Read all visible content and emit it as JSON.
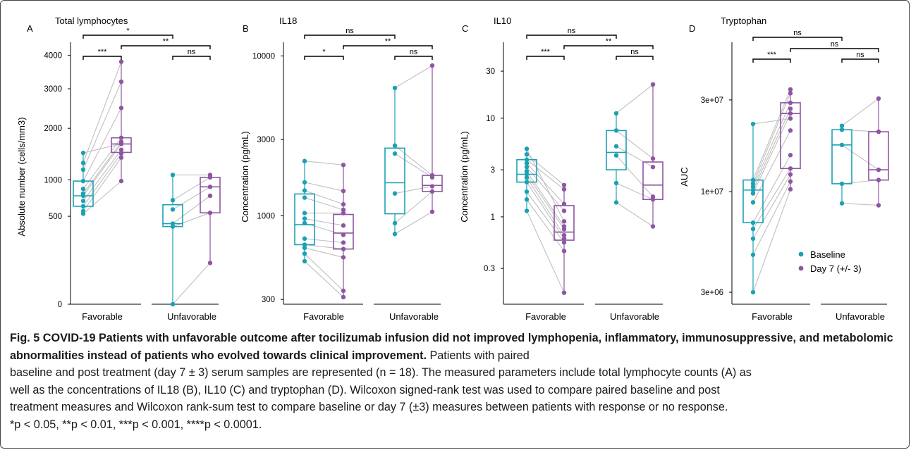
{
  "colors": {
    "baseline": "#1BA1B4",
    "day7": "#8E55A2",
    "paired_line": "#BFBFBF",
    "axis": "#000000"
  },
  "legend": {
    "items": [
      "Baseline",
      "Day 7 (+/- 3)"
    ]
  },
  "caption": {
    "fig_number": "Fig. 5",
    "title": "COVID-19 Patients with unfavorable outcome after tocilizumab infusion did not improved lymphopenia, inflammatory, immunosuppressive, and metabolomic abnormalities instead of patients who evolved towards clinical improvement.",
    "body_lines": [
      "Patients with paired",
      "baseline and post treatment (day 7 ± 3) serum samples are represented (n = 18). The measured parameters include total lymphocyte counts (A) as",
      "well as the concentrations of IL18 (B), IL10 (C) and tryptophan (D). Wilcoxon signed-rank test was used to compare paired baseline and post",
      "treatment measures and Wilcoxon rank-sum test to compare baseline or day 7 (±3) measures between patients with response or no response.",
      "*p < 0.05, **p < 0.01, ***p < 0.001, ****p < 0.0001."
    ]
  },
  "chart_data": [
    {
      "type": "box",
      "panel": "A",
      "title": "Total lymphocytes",
      "ylabel": "Absolute number (cells/mm3)",
      "y_scale": "sqrt",
      "ylim": [
        0,
        4200
      ],
      "y_ticks": [
        0,
        500,
        1000,
        2000,
        3000,
        4000
      ],
      "categories": [
        "Favorable",
        "Unfavorable"
      ],
      "groups": [
        {
          "category": "Favorable",
          "series": "Baseline",
          "box": {
            "min": 530,
            "q1": 620,
            "median": 760,
            "q3": 980,
            "max": 1480
          }
        },
        {
          "category": "Favorable",
          "series": "Day 7 (+/- 3)",
          "box": {
            "min": 980,
            "q1": 1490,
            "median": 1660,
            "q3": 1790,
            "max": 3800
          }
        },
        {
          "category": "Unfavorable",
          "series": "Baseline",
          "box": {
            "min": 0,
            "q1": 390,
            "median": 420,
            "q3": 640,
            "max": 1080
          }
        },
        {
          "category": "Unfavorable",
          "series": "Day 7 (+/- 3)",
          "box": {
            "min": 110,
            "q1": 540,
            "median": 890,
            "q3": 1040,
            "max": 1080
          }
        }
      ],
      "pairs": [
        {
          "category": "Favorable",
          "baseline": [
            530,
            560,
            620,
            690,
            760,
            790,
            860,
            980,
            1170,
            1290,
            1480
          ],
          "day7": [
            980,
            1390,
            1470,
            1540,
            1660,
            1700,
            1790,
            2490,
            3200,
            3800,
            1660
          ]
        },
        {
          "category": "Unfavorable",
          "baseline": [
            0,
            390,
            420,
            580,
            700,
            1080
          ],
          "day7": [
            110,
            540,
            760,
            890,
            1040,
            1080
          ]
        }
      ],
      "significance": [
        {
          "label": "*",
          "from": "Favorable-Baseline",
          "to": "Unfavorable-Baseline"
        },
        {
          "label": "***",
          "from": "Favorable-Baseline",
          "to": "Favorable-Day 7 (+/- 3)"
        },
        {
          "label": "**",
          "from": "Favorable-Day 7 (+/- 3)",
          "to": "Unfavorable-Day 7 (+/- 3)"
        },
        {
          "label": "ns",
          "from": "Unfavorable-Baseline",
          "to": "Unfavorable-Day 7 (+/- 3)"
        }
      ]
    },
    {
      "type": "box",
      "panel": "B",
      "title": "IL18",
      "ylabel": "Concentration (pg/mL)",
      "y_scale": "log",
      "ylim": [
        280,
        11000
      ],
      "y_ticks": [
        300,
        1000,
        3000,
        10000
      ],
      "categories": [
        "Favorable",
        "Unfavorable"
      ],
      "groups": [
        {
          "category": "Favorable",
          "series": "Baseline",
          "box": {
            "min": 520,
            "q1": 660,
            "median": 880,
            "q3": 1370,
            "max": 2200
          }
        },
        {
          "category": "Favorable",
          "series": "Day 7 (+/- 3)",
          "box": {
            "min": 310,
            "q1": 620,
            "median": 780,
            "q3": 1020,
            "max": 2080
          }
        },
        {
          "category": "Unfavorable",
          "series": "Baseline",
          "box": {
            "min": 770,
            "q1": 1030,
            "median": 1610,
            "q3": 2650,
            "max": 6300
          }
        },
        {
          "category": "Unfavorable",
          "series": "Day 7 (+/- 3)",
          "box": {
            "min": 1060,
            "q1": 1420,
            "median": 1550,
            "q3": 1790,
            "max": 8700
          }
        }
      ],
      "pairs": [
        {
          "category": "Favorable",
          "baseline": [
            520,
            580,
            630,
            660,
            720,
            900,
            960,
            1040,
            1300,
            1440,
            1620,
            2200
          ],
          "day7": [
            310,
            340,
            550,
            620,
            680,
            760,
            870,
            1040,
            1090,
            1180,
            1430,
            2080
          ]
        },
        {
          "category": "Unfavorable",
          "baseline": [
            770,
            900,
            1380,
            2450,
            2750,
            6300
          ],
          "day7": [
            1060,
            1420,
            1530,
            1740,
            1790,
            8700
          ]
        }
      ],
      "significance": [
        {
          "label": "ns",
          "from": "Favorable-Baseline",
          "to": "Unfavorable-Baseline"
        },
        {
          "label": "*",
          "from": "Favorable-Baseline",
          "to": "Favorable-Day 7 (+/- 3)"
        },
        {
          "label": "**",
          "from": "Favorable-Day 7 (+/- 3)",
          "to": "Unfavorable-Day 7 (+/- 3)"
        },
        {
          "label": "ns",
          "from": "Unfavorable-Baseline",
          "to": "Unfavorable-Day 7 (+/- 3)"
        }
      ]
    },
    {
      "type": "box",
      "panel": "C",
      "title": "IL10",
      "ylabel": "Concentration (pg/mL)",
      "y_scale": "log",
      "ylim": [
        0.13,
        50
      ],
      "y_ticks": [
        0.3,
        1,
        3,
        10,
        30
      ],
      "categories": [
        "Favorable",
        "Unfavorable"
      ],
      "groups": [
        {
          "category": "Favorable",
          "series": "Baseline",
          "box": {
            "min": 1.15,
            "q1": 2.25,
            "median": 2.7,
            "q3": 3.8,
            "max": 4.9
          }
        },
        {
          "category": "Favorable",
          "series": "Day 7 (+/- 3)",
          "box": {
            "min": 0.17,
            "q1": 0.58,
            "median": 0.7,
            "q3": 1.3,
            "max": 2.1
          }
        },
        {
          "category": "Unfavorable",
          "series": "Baseline",
          "box": {
            "min": 1.4,
            "q1": 3.0,
            "median": 4.5,
            "q3": 7.5,
            "max": 11.2
          }
        },
        {
          "category": "Unfavorable",
          "series": "Day 7 (+/- 3)",
          "box": {
            "min": 0.8,
            "q1": 1.5,
            "median": 2.1,
            "q3": 3.6,
            "max": 22
          }
        }
      ],
      "pairs": [
        {
          "category": "Favorable",
          "baseline": [
            1.15,
            1.5,
            1.8,
            2.25,
            2.5,
            2.7,
            2.9,
            3.2,
            3.5,
            3.8,
            4.3,
            4.9
          ],
          "day7": [
            0.17,
            0.45,
            0.55,
            0.6,
            0.65,
            0.75,
            0.8,
            1.15,
            1.35,
            1.9,
            2.1,
            0.9
          ]
        },
        {
          "category": "Unfavorable",
          "baseline": [
            1.4,
            2.2,
            4.2,
            5.2,
            7.5,
            11.2
          ],
          "day7": [
            0.8,
            1.5,
            1.6,
            3.2,
            3.9,
            22
          ]
        }
      ],
      "significance": [
        {
          "label": "ns",
          "from": "Favorable-Baseline",
          "to": "Unfavorable-Baseline"
        },
        {
          "label": "***",
          "from": "Favorable-Baseline",
          "to": "Favorable-Day 7 (+/- 3)"
        },
        {
          "label": "**",
          "from": "Favorable-Day 7 (+/- 3)",
          "to": "Unfavorable-Day 7 (+/- 3)"
        },
        {
          "label": "ns",
          "from": "Unfavorable-Baseline",
          "to": "Unfavorable-Day 7 (+/- 3)"
        }
      ]
    },
    {
      "type": "box",
      "panel": "D",
      "title": "Tryptophan",
      "ylabel": "AUC",
      "y_scale": "log",
      "ylim": [
        2600000,
        55000000
      ],
      "y_ticks": [
        3000000,
        10000000,
        30000000
      ],
      "y_tick_labels": [
        "3e+06",
        "1e+07",
        "3e+07"
      ],
      "categories": [
        "Favorable",
        "Unfavorable"
      ],
      "groups": [
        {
          "category": "Favorable",
          "series": "Baseline",
          "box": {
            "min": 3000000,
            "q1": 6900000,
            "median": 10200000,
            "q3": 11500000,
            "max": 22500000
          }
        },
        {
          "category": "Favorable",
          "series": "Day 7 (+/- 3)",
          "box": {
            "min": 10300000,
            "q1": 13200000,
            "median": 25500000,
            "q3": 29000000,
            "max": 34000000
          }
        },
        {
          "category": "Unfavorable",
          "series": "Baseline",
          "box": {
            "min": 8700000,
            "q1": 11000000,
            "median": 17500000,
            "q3": 21000000,
            "max": 22000000
          }
        },
        {
          "category": "Unfavorable",
          "series": "Day 7 (+/- 3)",
          "box": {
            "min": 8500000,
            "q1": 11500000,
            "median": 13000000,
            "q3": 20500000,
            "max": 30500000
          }
        }
      ],
      "pairs": [
        {
          "category": "Favorable",
          "baseline": [
            3000000,
            4700000,
            5700000,
            6400000,
            6900000,
            8800000,
            9800000,
            10200000,
            10600000,
            11000000,
            11500000,
            22500000
          ],
          "day7": [
            10300000,
            11300000,
            12300000,
            13200000,
            15500000,
            20800000,
            25500000,
            27000000,
            29000000,
            32500000,
            34000000,
            24000000
          ]
        },
        {
          "category": "Unfavorable",
          "baseline": [
            8700000,
            11000000,
            17500000,
            21000000,
            22000000
          ],
          "day7": [
            8500000,
            11500000,
            13000000,
            20500000,
            30500000
          ]
        }
      ],
      "significance": [
        {
          "label": "ns",
          "from": "Favorable-Baseline",
          "to": "Unfavorable-Baseline"
        },
        {
          "label": "***",
          "from": "Favorable-Baseline",
          "to": "Favorable-Day 7 (+/- 3)"
        },
        {
          "label": "ns",
          "from": "Favorable-Day 7 (+/- 3)",
          "to": "Unfavorable-Day 7 (+/- 3)"
        },
        {
          "label": "ns",
          "from": "Unfavorable-Baseline",
          "to": "Unfavorable-Day 7 (+/- 3)"
        }
      ]
    }
  ]
}
